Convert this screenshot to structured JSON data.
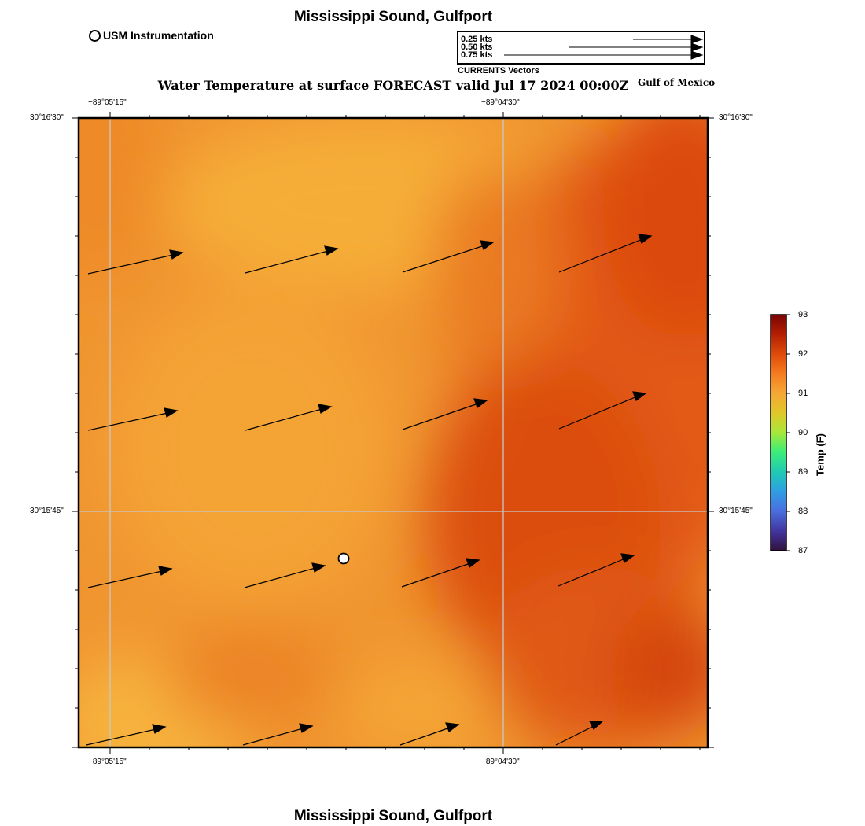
{
  "header": {
    "title": "Mississippi Sound, Gulfport",
    "subtitle": "Water Temperature at surface FORECAST valid Jul 17 2024 00:00Z",
    "region_label": "Gulf of Mexico",
    "footer_title": "Mississippi Sound, Gulfport"
  },
  "legend": {
    "station_label": "USM Instrumentation",
    "vector_scale": [
      {
        "label": "0.25 kts",
        "speed_kts": 0.25
      },
      {
        "label": "0.50 kts",
        "speed_kts": 0.5
      },
      {
        "label": "0.75 kts",
        "speed_kts": 0.75
      }
    ],
    "vector_caption": "CURRENTS Vectors"
  },
  "map": {
    "lon_ticks": [
      {
        "label": "−89°05'15\"",
        "lon": -89.0875
      },
      {
        "label": "−89°04'30\"",
        "lon": -89.075
      }
    ],
    "lat_ticks": [
      {
        "label": "30°16'30\"",
        "lat": 30.275
      },
      {
        "label": "30°15'45\"",
        "lat": 30.2625
      }
    ],
    "colors": {
      "warm_low": "#f5a93a",
      "warm_mid": "#ee7e22",
      "warm_high": "#d9450c",
      "grid": "#c8c8c8"
    }
  },
  "colorbar": {
    "title": "Temp (F)",
    "ticks": [
      "93",
      "92",
      "91",
      "90",
      "89",
      "88",
      "87"
    ]
  }
}
